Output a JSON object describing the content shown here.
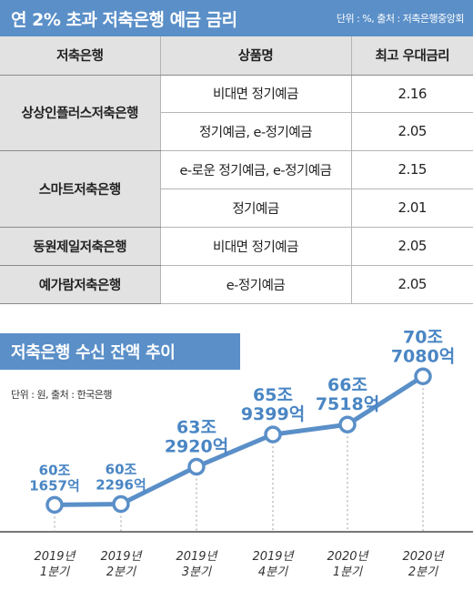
{
  "table": {
    "title": "연 2% 초과 저축은행 예금 금리",
    "source": "단위 : %, 출처 : 저축은행중앙회",
    "headers": [
      "저축은행",
      "상품명",
      "최고 우대금리"
    ],
    "rows": [
      {
        "bank": "상상인플러스저축은행",
        "products": [
          {
            "name": "비대면 정기예금",
            "rate": "2.16"
          },
          {
            "name": "정기예금, e-정기예금",
            "rate": "2.05"
          }
        ]
      },
      {
        "bank": "스마트저축은행",
        "products": [
          {
            "name": "e-로운 정기예금, e-정기예금",
            "rate": "2.15"
          },
          {
            "name": "정기예금",
            "rate": "2.01"
          }
        ]
      },
      {
        "bank": "동원제일저축은행",
        "products": [
          {
            "name": "비대면 정기예금",
            "rate": "2.05"
          }
        ]
      },
      {
        "bank": "예가람저축은행",
        "products": [
          {
            "name": "e-정기예금",
            "rate": "2.05"
          }
        ]
      }
    ]
  },
  "chart_data": {
    "type": "line",
    "title": "저축은행 수신 잔액 추이",
    "unit_note": "단위 : 원, 출처 : 한국은행",
    "categories": [
      [
        "2019년",
        "1분기"
      ],
      [
        "2019년",
        "2분기"
      ],
      [
        "2019년",
        "3분기"
      ],
      [
        "2019년",
        "4분기"
      ],
      [
        "2020년",
        "1분기"
      ],
      [
        "2020년",
        "2분기"
      ]
    ],
    "series": [
      {
        "values": [
          601657,
          602296,
          632920,
          659399,
          667518,
          707080
        ],
        "labels": [
          [
            "60조",
            "1657억"
          ],
          [
            "60조",
            "2296억"
          ],
          [
            "63조",
            "2920억"
          ],
          [
            "65조",
            "9399억"
          ],
          [
            "66조",
            "7518억"
          ],
          [
            "70조",
            "7080억"
          ]
        ]
      }
    ],
    "ylim": [
      590000,
      720000
    ],
    "line_color": "#5a8fc8",
    "grid": false
  }
}
